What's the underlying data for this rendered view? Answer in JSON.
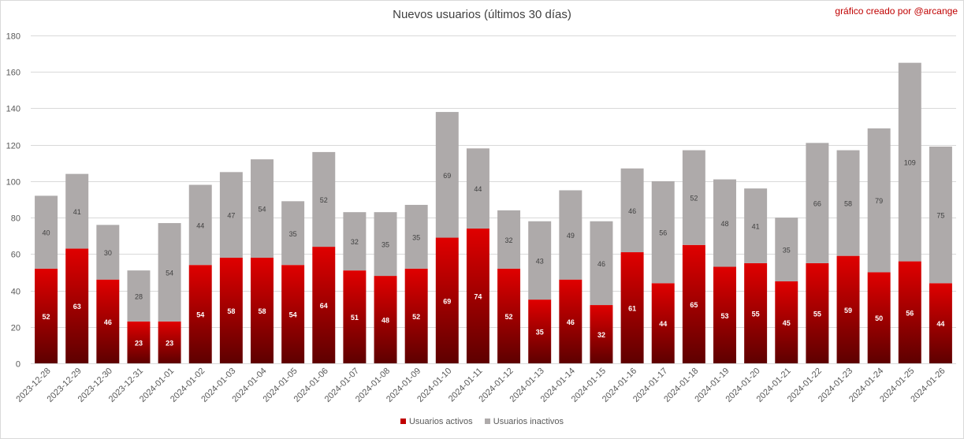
{
  "title": "Nuevos usuarios (últimos 30 días)",
  "credit": "gráfico creado por @arcange",
  "colors": {
    "active_top": "#e00000",
    "active_bottom": "#5e0000",
    "inactive": "#aeaaaa",
    "grid": "#d9d9d9",
    "axis_text": "#595959"
  },
  "chart_data": {
    "type": "bar",
    "stacked": true,
    "title": "Nuevos usuarios (últimos 30 días)",
    "xlabel": "",
    "ylabel": "",
    "ylim": [
      0,
      180
    ],
    "yticks": [
      0,
      20,
      40,
      60,
      80,
      100,
      120,
      140,
      160,
      180
    ],
    "grid": true,
    "legend_position": "bottom",
    "categories": [
      "2023-12-28",
      "2023-12-29",
      "2023-12-30",
      "2023-12-31",
      "2024-01-01",
      "2024-01-02",
      "2024-01-03",
      "2024-01-04",
      "2024-01-05",
      "2024-01-06",
      "2024-01-07",
      "2024-01-08",
      "2024-01-09",
      "2024-01-10",
      "2024-01-11",
      "2024-01-12",
      "2024-01-13",
      "2024-01-14",
      "2024-01-15",
      "2024-01-16",
      "2024-01-17",
      "2024-01-18",
      "2024-01-19",
      "2024-01-20",
      "2024-01-21",
      "2024-01-22",
      "2024-01-23",
      "2024-01-24",
      "2024-01-25",
      "2024-01-26"
    ],
    "series": [
      {
        "name": "Usuarios activos",
        "color": "#c00000",
        "values": [
          52,
          63,
          46,
          23,
          23,
          54,
          58,
          58,
          54,
          64,
          51,
          48,
          52,
          69,
          74,
          52,
          35,
          46,
          32,
          61,
          44,
          65,
          53,
          55,
          45,
          55,
          59,
          50,
          56,
          44
        ]
      },
      {
        "name": "Usuarios inactivos",
        "color": "#aeaaaa",
        "values": [
          40,
          41,
          30,
          28,
          54,
          44,
          47,
          54,
          35,
          52,
          32,
          35,
          35,
          69,
          44,
          32,
          43,
          49,
          46,
          46,
          56,
          52,
          48,
          41,
          35,
          66,
          58,
          79,
          109,
          75
        ]
      }
    ]
  }
}
